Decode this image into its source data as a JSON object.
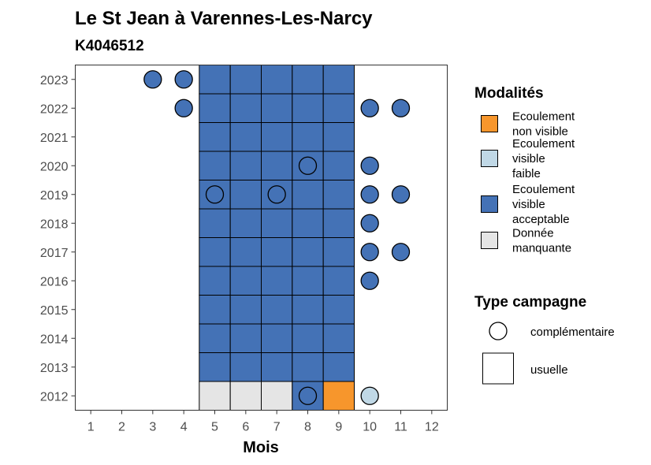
{
  "chart_data": {
    "type": "heatmap",
    "title": "Le St Jean à Varennes-Les-Narcy",
    "subtitle": "K4046512",
    "xlabel": "Mois",
    "ylabel": "",
    "x_ticks": [
      "1",
      "2",
      "3",
      "4",
      "5",
      "6",
      "7",
      "8",
      "9",
      "10",
      "11",
      "12"
    ],
    "y_ticks": [
      "2012",
      "2013",
      "2014",
      "2015",
      "2016",
      "2017",
      "2018",
      "2019",
      "2020",
      "2021",
      "2022",
      "2023"
    ],
    "xlim": [
      0.5,
      12.5
    ],
    "ylim": [
      2011.5,
      2023.5
    ],
    "grid": false,
    "colors": {
      "non_visible": "#f7962c",
      "faible": "#c0d8e6",
      "acceptable": "#4472b6",
      "manquante": "#e5e5e5"
    },
    "legend_modalites": {
      "title": "Modalités",
      "position": "right",
      "items": [
        {
          "key": "non_visible",
          "lines": [
            "Ecoulement",
            "non visible"
          ]
        },
        {
          "key": "faible",
          "lines": [
            "Ecoulement",
            "visible",
            "faible"
          ]
        },
        {
          "key": "acceptable",
          "lines": [
            "Ecoulement",
            "visible",
            "acceptable"
          ]
        },
        {
          "key": "manquante",
          "lines": [
            "Donnée",
            "manquante"
          ]
        }
      ]
    },
    "legend_type": {
      "title": "Type campagne",
      "position": "right",
      "items": [
        {
          "shape": "circle",
          "label": "complémentaire"
        },
        {
          "shape": "square",
          "label": "usuelle"
        }
      ]
    },
    "usuelle": [
      {
        "year": 2012,
        "month": 5,
        "m": "manquante"
      },
      {
        "year": 2012,
        "month": 6,
        "m": "manquante"
      },
      {
        "year": 2012,
        "month": 7,
        "m": "manquante"
      },
      {
        "year": 2012,
        "month": 8,
        "m": "acceptable"
      },
      {
        "year": 2012,
        "month": 9,
        "m": "non_visible"
      },
      {
        "year": 2013,
        "month": 5,
        "m": "acceptable"
      },
      {
        "year": 2013,
        "month": 6,
        "m": "acceptable"
      },
      {
        "year": 2013,
        "month": 7,
        "m": "acceptable"
      },
      {
        "year": 2013,
        "month": 8,
        "m": "acceptable"
      },
      {
        "year": 2013,
        "month": 9,
        "m": "acceptable"
      },
      {
        "year": 2014,
        "month": 5,
        "m": "acceptable"
      },
      {
        "year": 2014,
        "month": 6,
        "m": "acceptable"
      },
      {
        "year": 2014,
        "month": 7,
        "m": "acceptable"
      },
      {
        "year": 2014,
        "month": 8,
        "m": "acceptable"
      },
      {
        "year": 2014,
        "month": 9,
        "m": "acceptable"
      },
      {
        "year": 2015,
        "month": 5,
        "m": "acceptable"
      },
      {
        "year": 2015,
        "month": 6,
        "m": "acceptable"
      },
      {
        "year": 2015,
        "month": 7,
        "m": "acceptable"
      },
      {
        "year": 2015,
        "month": 8,
        "m": "acceptable"
      },
      {
        "year": 2015,
        "month": 9,
        "m": "acceptable"
      },
      {
        "year": 2016,
        "month": 5,
        "m": "acceptable"
      },
      {
        "year": 2016,
        "month": 6,
        "m": "acceptable"
      },
      {
        "year": 2016,
        "month": 7,
        "m": "acceptable"
      },
      {
        "year": 2016,
        "month": 8,
        "m": "acceptable"
      },
      {
        "year": 2016,
        "month": 9,
        "m": "acceptable"
      },
      {
        "year": 2017,
        "month": 5,
        "m": "acceptable"
      },
      {
        "year": 2017,
        "month": 6,
        "m": "acceptable"
      },
      {
        "year": 2017,
        "month": 7,
        "m": "acceptable"
      },
      {
        "year": 2017,
        "month": 8,
        "m": "acceptable"
      },
      {
        "year": 2017,
        "month": 9,
        "m": "acceptable"
      },
      {
        "year": 2018,
        "month": 5,
        "m": "acceptable"
      },
      {
        "year": 2018,
        "month": 6,
        "m": "acceptable"
      },
      {
        "year": 2018,
        "month": 7,
        "m": "acceptable"
      },
      {
        "year": 2018,
        "month": 8,
        "m": "acceptable"
      },
      {
        "year": 2018,
        "month": 9,
        "m": "acceptable"
      },
      {
        "year": 2019,
        "month": 5,
        "m": "acceptable"
      },
      {
        "year": 2019,
        "month": 6,
        "m": "acceptable"
      },
      {
        "year": 2019,
        "month": 7,
        "m": "acceptable"
      },
      {
        "year": 2019,
        "month": 8,
        "m": "acceptable"
      },
      {
        "year": 2019,
        "month": 9,
        "m": "acceptable"
      },
      {
        "year": 2020,
        "month": 5,
        "m": "acceptable"
      },
      {
        "year": 2020,
        "month": 6,
        "m": "acceptable"
      },
      {
        "year": 2020,
        "month": 7,
        "m": "acceptable"
      },
      {
        "year": 2020,
        "month": 8,
        "m": "acceptable"
      },
      {
        "year": 2020,
        "month": 9,
        "m": "acceptable"
      },
      {
        "year": 2021,
        "month": 5,
        "m": "acceptable"
      },
      {
        "year": 2021,
        "month": 6,
        "m": "acceptable"
      },
      {
        "year": 2021,
        "month": 7,
        "m": "acceptable"
      },
      {
        "year": 2021,
        "month": 8,
        "m": "acceptable"
      },
      {
        "year": 2021,
        "month": 9,
        "m": "acceptable"
      },
      {
        "year": 2022,
        "month": 5,
        "m": "acceptable"
      },
      {
        "year": 2022,
        "month": 6,
        "m": "acceptable"
      },
      {
        "year": 2022,
        "month": 7,
        "m": "acceptable"
      },
      {
        "year": 2022,
        "month": 8,
        "m": "acceptable"
      },
      {
        "year": 2022,
        "month": 9,
        "m": "acceptable"
      },
      {
        "year": 2023,
        "month": 5,
        "m": "acceptable"
      },
      {
        "year": 2023,
        "month": 6,
        "m": "acceptable"
      },
      {
        "year": 2023,
        "month": 7,
        "m": "acceptable"
      },
      {
        "year": 2023,
        "month": 8,
        "m": "acceptable"
      },
      {
        "year": 2023,
        "month": 9,
        "m": "acceptable"
      }
    ],
    "complementaire": [
      {
        "year": 2023,
        "month": 3,
        "m": "acceptable"
      },
      {
        "year": 2023,
        "month": 4,
        "m": "acceptable"
      },
      {
        "year": 2022,
        "month": 4,
        "m": "acceptable"
      },
      {
        "year": 2022,
        "month": 10,
        "m": "acceptable"
      },
      {
        "year": 2022,
        "month": 11,
        "m": "acceptable"
      },
      {
        "year": 2020,
        "month": 8,
        "m": "acceptable"
      },
      {
        "year": 2020,
        "month": 10,
        "m": "acceptable"
      },
      {
        "year": 2019,
        "month": 5,
        "m": "acceptable"
      },
      {
        "year": 2019,
        "month": 7,
        "m": "acceptable"
      },
      {
        "year": 2019,
        "month": 10,
        "m": "acceptable"
      },
      {
        "year": 2019,
        "month": 11,
        "m": "acceptable"
      },
      {
        "year": 2018,
        "month": 10,
        "m": "acceptable"
      },
      {
        "year": 2017,
        "month": 10,
        "m": "acceptable"
      },
      {
        "year": 2017,
        "month": 11,
        "m": "acceptable"
      },
      {
        "year": 2016,
        "month": 10,
        "m": "acceptable"
      },
      {
        "year": 2012,
        "month": 8,
        "m": "acceptable"
      },
      {
        "year": 2012,
        "month": 10,
        "m": "faible"
      }
    ]
  }
}
